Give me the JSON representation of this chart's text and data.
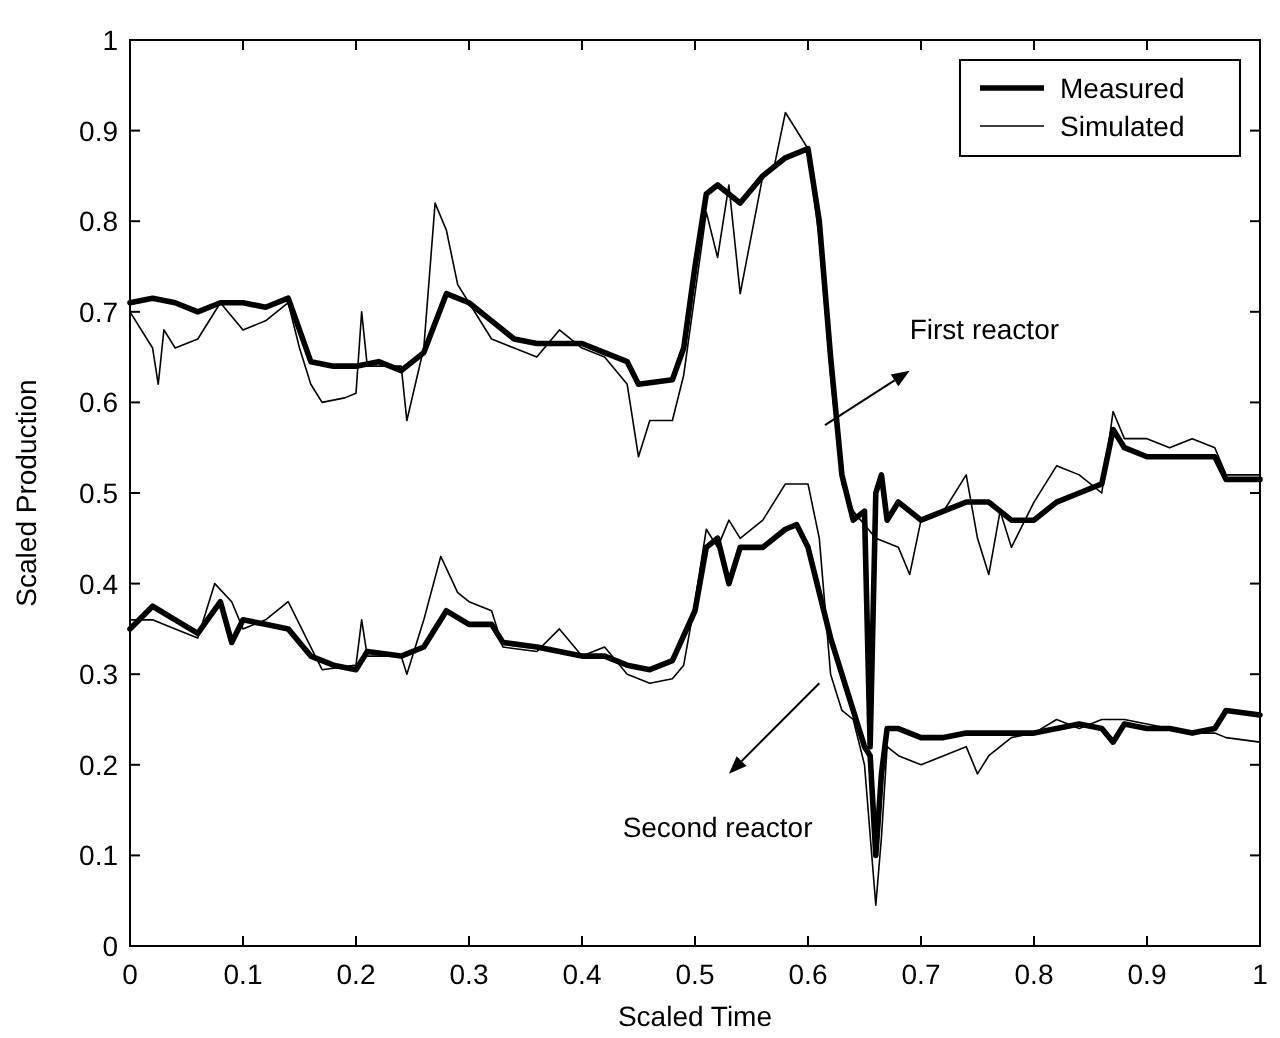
{
  "chart_data": {
    "type": "line",
    "xlabel": "Scaled Time",
    "ylabel": "Scaled Production",
    "xlim": [
      0,
      1
    ],
    "ylim": [
      0,
      1
    ],
    "xticks": [
      0,
      0.1,
      0.2,
      0.3,
      0.4,
      0.5,
      0.6,
      0.7,
      0.8,
      0.9,
      1
    ],
    "yticks": [
      0,
      0.1,
      0.2,
      0.3,
      0.4,
      0.5,
      0.6,
      0.7,
      0.8,
      0.9,
      1
    ],
    "grid": false,
    "legend": "top right",
    "line_style": "solid",
    "annotations": [
      "First reactor",
      "Second reactor"
    ],
    "series": [
      {
        "name": "Measured",
        "color": "#000000",
        "x": [
          0,
          0.02,
          0.04,
          0.06,
          0.08,
          0.1,
          0.12,
          0.14,
          0.15,
          0.16,
          0.18,
          0.2,
          0.22,
          0.24,
          0.26,
          0.28,
          0.3,
          0.32,
          0.34,
          0.36,
          0.38,
          0.4,
          0.42,
          0.44,
          0.45,
          0.48,
          0.49,
          0.5,
          0.51,
          0.52,
          0.54,
          0.56,
          0.58,
          0.6,
          0.61,
          0.62,
          0.63,
          0.64,
          0.65,
          0.655,
          0.66,
          0.665,
          0.67,
          0.68,
          0.7,
          0.72,
          0.74,
          0.76,
          0.78,
          0.8,
          0.82,
          0.84,
          0.86,
          0.87,
          0.88,
          0.9,
          0.92,
          0.94,
          0.96,
          0.97,
          1
        ],
        "values": [
          0.71,
          0.715,
          0.71,
          0.7,
          0.71,
          0.71,
          0.705,
          0.715,
          0.68,
          0.645,
          0.64,
          0.64,
          0.645,
          0.635,
          0.655,
          0.72,
          0.71,
          0.69,
          0.67,
          0.665,
          0.665,
          0.665,
          0.655,
          0.645,
          0.62,
          0.625,
          0.66,
          0.75,
          0.83,
          0.84,
          0.82,
          0.85,
          0.87,
          0.88,
          0.8,
          0.65,
          0.52,
          0.47,
          0.48,
          0.22,
          0.5,
          0.52,
          0.47,
          0.49,
          0.47,
          0.48,
          0.49,
          0.49,
          0.47,
          0.47,
          0.49,
          0.5,
          0.51,
          0.57,
          0.55,
          0.54,
          0.54,
          0.54,
          0.54,
          0.515,
          0.515
        ]
      },
      {
        "name": "Simulated",
        "color": "#000000",
        "x": [
          0,
          0.02,
          0.025,
          0.03,
          0.04,
          0.06,
          0.08,
          0.1,
          0.12,
          0.14,
          0.15,
          0.16,
          0.17,
          0.19,
          0.2,
          0.205,
          0.21,
          0.24,
          0.245,
          0.26,
          0.27,
          0.28,
          0.29,
          0.3,
          0.32,
          0.34,
          0.36,
          0.38,
          0.4,
          0.42,
          0.44,
          0.45,
          0.46,
          0.48,
          0.49,
          0.5,
          0.51,
          0.52,
          0.53,
          0.54,
          0.56,
          0.57,
          0.58,
          0.6,
          0.61,
          0.62,
          0.63,
          0.64,
          0.66,
          0.68,
          0.69,
          0.7,
          0.72,
          0.74,
          0.75,
          0.76,
          0.77,
          0.78,
          0.8,
          0.82,
          0.84,
          0.86,
          0.87,
          0.88,
          0.9,
          0.92,
          0.94,
          0.96,
          0.97,
          1
        ],
        "values": [
          0.7,
          0.66,
          0.62,
          0.68,
          0.66,
          0.67,
          0.71,
          0.68,
          0.69,
          0.71,
          0.66,
          0.62,
          0.6,
          0.605,
          0.61,
          0.7,
          0.64,
          0.64,
          0.58,
          0.66,
          0.82,
          0.79,
          0.73,
          0.71,
          0.67,
          0.66,
          0.65,
          0.68,
          0.66,
          0.65,
          0.62,
          0.54,
          0.58,
          0.58,
          0.63,
          0.72,
          0.81,
          0.76,
          0.84,
          0.72,
          0.85,
          0.86,
          0.92,
          0.88,
          0.78,
          0.63,
          0.51,
          0.48,
          0.45,
          0.44,
          0.41,
          0.47,
          0.48,
          0.52,
          0.45,
          0.41,
          0.48,
          0.44,
          0.49,
          0.53,
          0.52,
          0.5,
          0.59,
          0.56,
          0.56,
          0.55,
          0.56,
          0.55,
          0.52,
          0.52
        ]
      },
      {
        "color": "#000000",
        "x": [
          0,
          0.02,
          0.04,
          0.06,
          0.08,
          0.09,
          0.1,
          0.12,
          0.14,
          0.16,
          0.18,
          0.2,
          0.21,
          0.24,
          0.26,
          0.28,
          0.3,
          0.32,
          0.33,
          0.36,
          0.38,
          0.4,
          0.42,
          0.44,
          0.46,
          0.48,
          0.5,
          0.51,
          0.52,
          0.53,
          0.54,
          0.56,
          0.58,
          0.59,
          0.6,
          0.62,
          0.64,
          0.65,
          0.655,
          0.66,
          0.665,
          0.67,
          0.68,
          0.7,
          0.72,
          0.74,
          0.76,
          0.78,
          0.8,
          0.82,
          0.84,
          0.86,
          0.87,
          0.88,
          0.9,
          0.92,
          0.94,
          0.96,
          0.97,
          1
        ],
        "values": [
          0.35,
          0.375,
          0.36,
          0.345,
          0.38,
          0.335,
          0.36,
          0.355,
          0.35,
          0.32,
          0.31,
          0.305,
          0.325,
          0.32,
          0.33,
          0.37,
          0.355,
          0.355,
          0.335,
          0.33,
          0.325,
          0.32,
          0.32,
          0.31,
          0.305,
          0.315,
          0.37,
          0.44,
          0.45,
          0.4,
          0.44,
          0.44,
          0.46,
          0.465,
          0.44,
          0.34,
          0.26,
          0.22,
          0.21,
          0.1,
          0.19,
          0.24,
          0.24,
          0.23,
          0.23,
          0.235,
          0.235,
          0.235,
          0.235,
          0.24,
          0.245,
          0.24,
          0.225,
          0.245,
          0.24,
          0.24,
          0.235,
          0.24,
          0.26,
          0.255
        ]
      },
      {
        "color": "#000000",
        "x": [
          0,
          0.02,
          0.04,
          0.06,
          0.075,
          0.09,
          0.1,
          0.12,
          0.14,
          0.16,
          0.17,
          0.2,
          0.205,
          0.21,
          0.24,
          0.245,
          0.26,
          0.275,
          0.29,
          0.3,
          0.32,
          0.33,
          0.36,
          0.38,
          0.4,
          0.42,
          0.44,
          0.46,
          0.48,
          0.49,
          0.5,
          0.51,
          0.52,
          0.53,
          0.54,
          0.56,
          0.58,
          0.6,
          0.61,
          0.62,
          0.63,
          0.64,
          0.65,
          0.66,
          0.665,
          0.67,
          0.68,
          0.7,
          0.72,
          0.74,
          0.75,
          0.76,
          0.78,
          0.8,
          0.82,
          0.84,
          0.86,
          0.88,
          0.9,
          0.92,
          0.94,
          0.96,
          0.97,
          1
        ],
        "values": [
          0.36,
          0.36,
          0.35,
          0.34,
          0.4,
          0.38,
          0.35,
          0.36,
          0.38,
          0.33,
          0.305,
          0.31,
          0.36,
          0.32,
          0.32,
          0.3,
          0.36,
          0.43,
          0.39,
          0.38,
          0.37,
          0.33,
          0.325,
          0.35,
          0.32,
          0.33,
          0.3,
          0.29,
          0.295,
          0.31,
          0.38,
          0.46,
          0.44,
          0.47,
          0.45,
          0.47,
          0.51,
          0.51,
          0.45,
          0.3,
          0.26,
          0.25,
          0.2,
          0.045,
          0.12,
          0.22,
          0.21,
          0.2,
          0.21,
          0.22,
          0.19,
          0.21,
          0.23,
          0.235,
          0.25,
          0.24,
          0.25,
          0.25,
          0.245,
          0.24,
          0.235,
          0.235,
          0.23,
          0.225
        ]
      }
    ]
  }
}
